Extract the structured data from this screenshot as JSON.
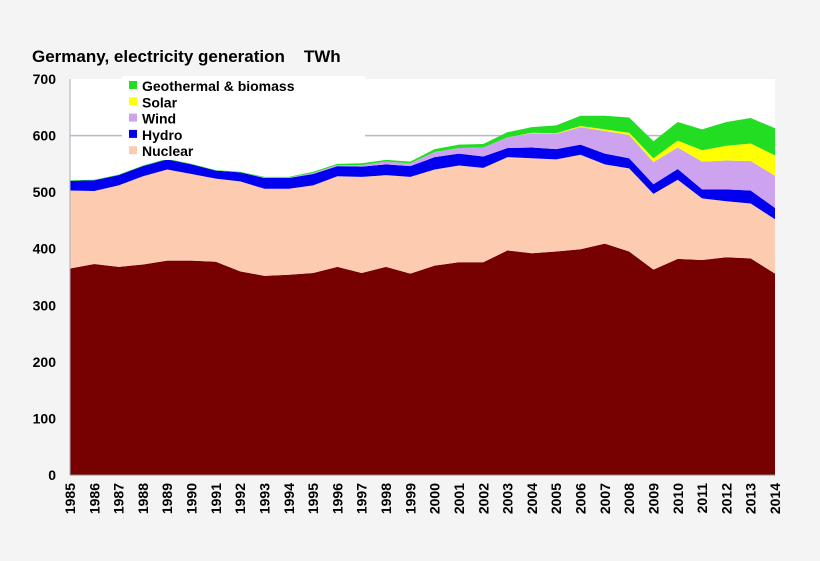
{
  "chart_data": {
    "type": "area",
    "stacked": true,
    "title": "Germany, electricity generation",
    "unit": "TWh",
    "xlabel": "",
    "ylabel": "",
    "ylim": [
      0,
      700
    ],
    "yticks": [
      0,
      100,
      200,
      300,
      400,
      500,
      600,
      700
    ],
    "grid": false,
    "legend": "top-left",
    "categories": [
      "1985",
      "1986",
      "1987",
      "1988",
      "1989",
      "1990",
      "1991",
      "1992",
      "1993",
      "1994",
      "1995",
      "1996",
      "1997",
      "1998",
      "1999",
      "2000",
      "2001",
      "2002",
      "2003",
      "2004",
      "2005",
      "2006",
      "2007",
      "2008",
      "2009",
      "2010",
      "2011",
      "2012",
      "2013",
      "2014"
    ],
    "series": [
      {
        "color": "#770000",
        "values": [
          365,
          373,
          368,
          372,
          379,
          379,
          377,
          360,
          352,
          354,
          357,
          368,
          357,
          368,
          356,
          370,
          376,
          376,
          397,
          392,
          395,
          399,
          409,
          395,
          363,
          382,
          380,
          385,
          383,
          356
        ]
      },
      {
        "name": "Nuclear",
        "color": "#fdccb0",
        "values": [
          138,
          129,
          144,
          156,
          161,
          153,
          147,
          159,
          154,
          152,
          155,
          160,
          170,
          162,
          171,
          170,
          171,
          167,
          165,
          168,
          163,
          167,
          140,
          147,
          134,
          140,
          109,
          99,
          97,
          96
        ]
      },
      {
        "name": "Hydro",
        "color": "#0000ee",
        "values": [
          17,
          19,
          18,
          18,
          18,
          17,
          14,
          16,
          19,
          19,
          20,
          18,
          18,
          19,
          19,
          22,
          21,
          20,
          16,
          19,
          18,
          18,
          19,
          18,
          17,
          19,
          16,
          21,
          23,
          20
        ]
      },
      {
        "name": "Wind",
        "color": "#cda3f0",
        "values": [
          0,
          0,
          0,
          0,
          0,
          0,
          0,
          0,
          1,
          1,
          2,
          2,
          3,
          5,
          5,
          9,
          10,
          16,
          19,
          25,
          27,
          31,
          40,
          41,
          39,
          38,
          49,
          51,
          52,
          57
        ]
      },
      {
        "name": "Solar",
        "color": "#ffff00",
        "values": [
          0,
          0,
          0,
          0,
          0,
          0,
          0,
          0,
          0,
          0,
          0,
          0,
          0,
          0,
          0,
          0,
          0,
          0,
          0,
          1,
          1,
          2,
          3,
          4,
          7,
          12,
          20,
          26,
          31,
          36
        ]
      },
      {
        "name": "Geothermal & biomass",
        "color": "#22dd22",
        "values": [
          1,
          1,
          1,
          1,
          1,
          1,
          1,
          1,
          1,
          1,
          2,
          2,
          3,
          3,
          3,
          5,
          6,
          6,
          9,
          10,
          14,
          18,
          24,
          27,
          30,
          33,
          37,
          42,
          45,
          48
        ]
      }
    ]
  }
}
